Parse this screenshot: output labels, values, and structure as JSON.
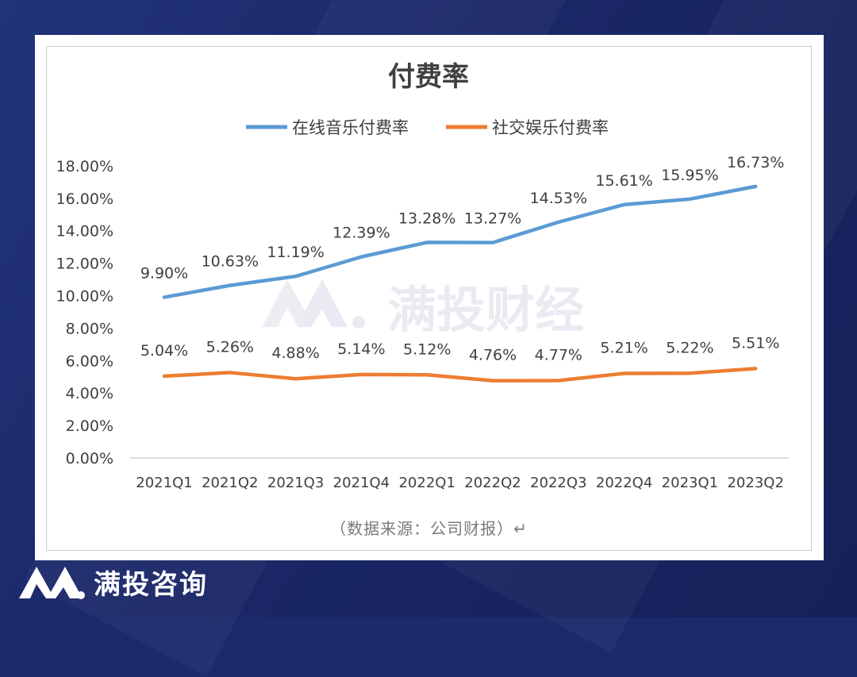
{
  "brand": {
    "footer_name": "满投咨询"
  },
  "watermark": {
    "text": "满投财经"
  },
  "source_note": "（数据来源：公司财报）↵",
  "colors": {
    "online_music": "#5b9bd5",
    "social_entertainment": "#ed7d31",
    "background": "#1b2a6b"
  },
  "chart_data": {
    "type": "line",
    "title": "付费率",
    "legend_position": "top",
    "grid": false,
    "categories": [
      "2021Q1",
      "2021Q2",
      "2021Q3",
      "2021Q4",
      "2022Q1",
      "2022Q2",
      "2022Q3",
      "2022Q4",
      "2023Q1",
      "2023Q2"
    ],
    "y_ticks": [
      "0.00%",
      "2.00%",
      "4.00%",
      "6.00%",
      "8.00%",
      "10.00%",
      "12.00%",
      "14.00%",
      "16.00%",
      "18.00%"
    ],
    "ylim": [
      0,
      18
    ],
    "series": [
      {
        "name": "在线音乐付费率",
        "values": [
          9.9,
          10.63,
          11.19,
          12.39,
          13.28,
          13.27,
          14.53,
          15.61,
          15.95,
          16.73
        ],
        "labels": [
          "9.90%",
          "10.63%",
          "11.19%",
          "12.39%",
          "13.28%",
          "13.27%",
          "14.53%",
          "15.61%",
          "15.95%",
          "16.73%"
        ]
      },
      {
        "name": "社交娱乐付费率",
        "values": [
          5.04,
          5.26,
          4.88,
          5.14,
          5.12,
          4.76,
          4.77,
          5.21,
          5.22,
          5.51
        ],
        "labels": [
          "5.04%",
          "5.26%",
          "4.88%",
          "5.14%",
          "5.12%",
          "4.76%",
          "4.77%",
          "5.21%",
          "5.22%",
          "5.51%"
        ]
      }
    ]
  }
}
